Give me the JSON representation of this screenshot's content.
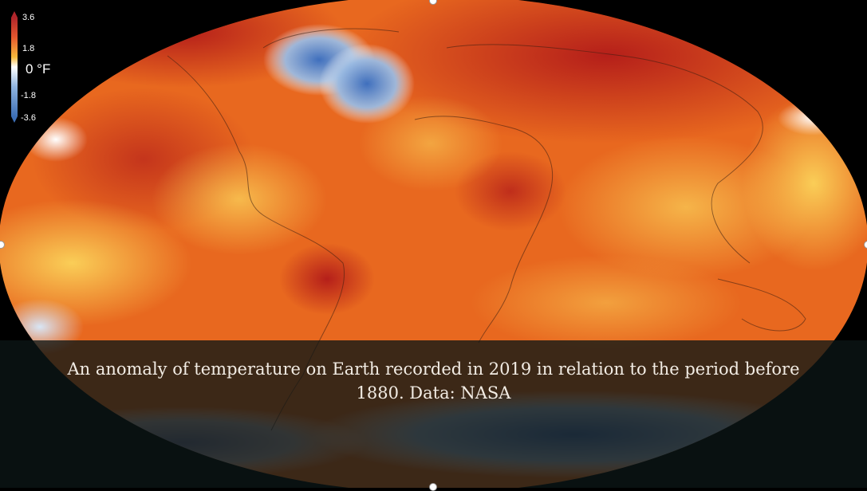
{
  "legend": {
    "ticks": [
      "3.6",
      "1.8",
      "-1.8",
      "-3.6"
    ],
    "unit": "0 °F",
    "gradient": [
      "#b0262b",
      "#e4572e",
      "#f6b93b",
      "#ffffff",
      "#8fb4e0",
      "#3d6fb6"
    ]
  },
  "caption": "An anomaly of temperature on Earth recorded in 2019 in relation to the period before 1880. Data: NASA",
  "colors": {
    "warm_strong": "#b8261d",
    "warm": "#e2561c",
    "warm_light": "#f7b13a",
    "cool": "#4a78c0",
    "background": "#000000"
  }
}
